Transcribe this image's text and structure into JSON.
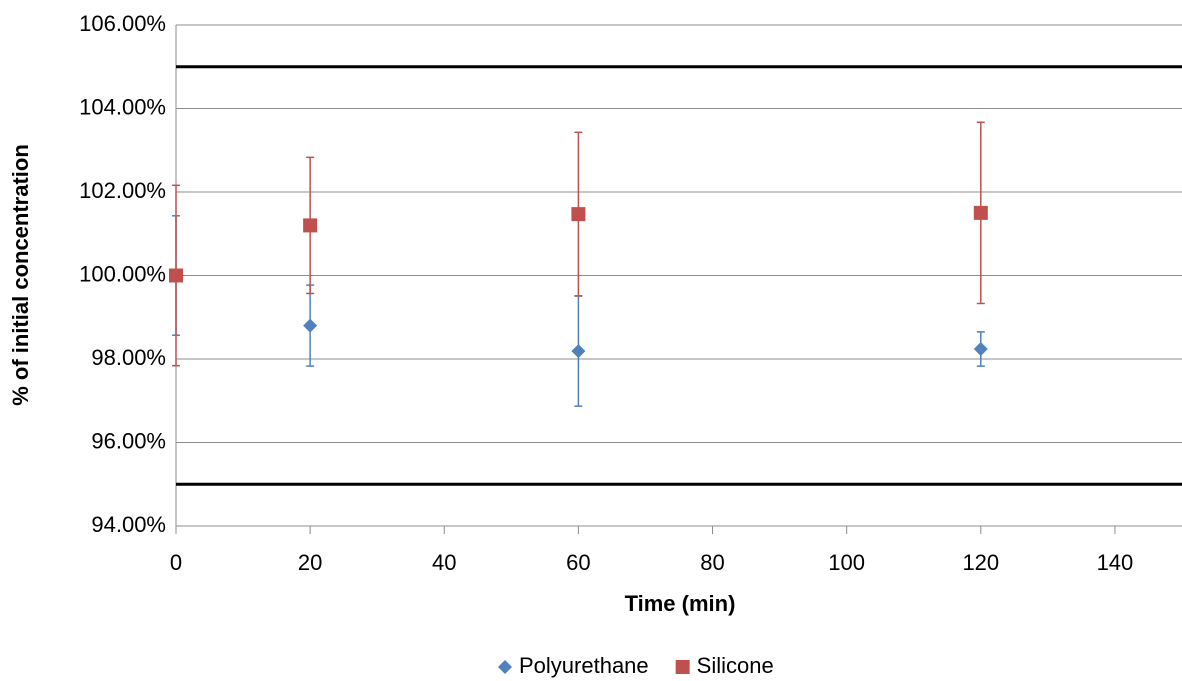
{
  "chart_data": {
    "type": "scatter",
    "x_label": "Time (min)",
    "y_label": "% of initial concentration",
    "xlim": [
      0,
      150
    ],
    "xticks": [
      0,
      20,
      40,
      60,
      80,
      100,
      120,
      140
    ],
    "ylim": [
      94,
      106
    ],
    "yticks": [
      {
        "value": 94,
        "label": "94.00%"
      },
      {
        "value": 96,
        "label": "96.00%"
      },
      {
        "value": 98,
        "label": "98.00%"
      },
      {
        "value": 100,
        "label": "100.00%"
      },
      {
        "value": 102,
        "label": "102.00%"
      },
      {
        "value": 104,
        "label": "104.00%"
      },
      {
        "value": 106,
        "label": "106.00%"
      }
    ],
    "grid": true,
    "hlines": [
      95,
      105
    ],
    "hline_color": "#000000",
    "legend": "bottom",
    "series": [
      {
        "name": "Polyurethane",
        "color": "#4f81bd",
        "marker": "diamond",
        "x": [
          0,
          20,
          60,
          120
        ],
        "values": [
          100,
          98.8,
          98.19,
          98.24
        ],
        "errors": [
          1.43,
          0.97,
          1.32,
          0.41
        ]
      },
      {
        "name": "Silicone",
        "color": "#c0504d",
        "marker": "square",
        "x": [
          0,
          20,
          60,
          120
        ],
        "values": [
          100,
          101.2,
          101.47,
          101.5
        ],
        "errors": [
          2.16,
          1.63,
          1.96,
          2.17
        ]
      }
    ]
  }
}
